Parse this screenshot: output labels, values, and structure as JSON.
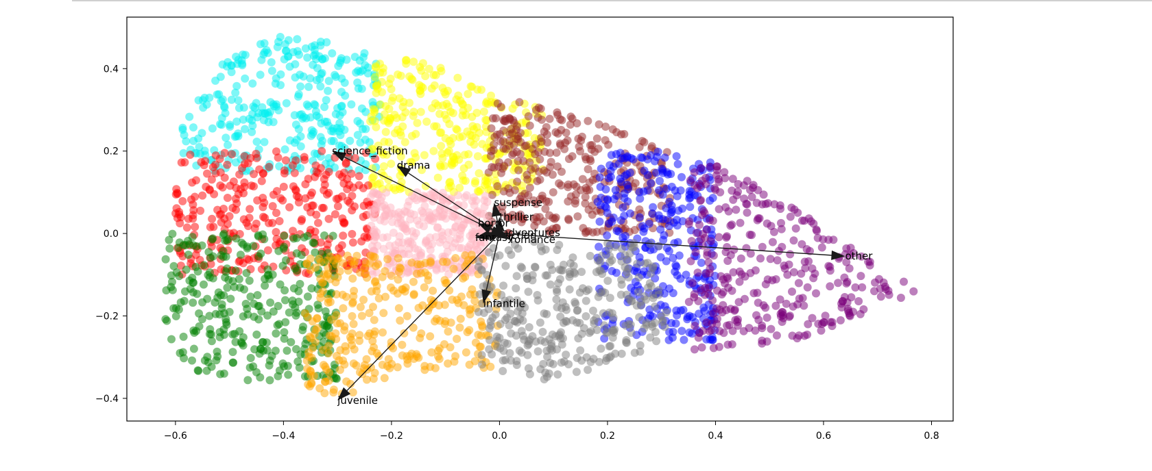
{
  "chart_data": {
    "type": "scatter",
    "title": "",
    "xlabel": "",
    "ylabel": "",
    "xlim": [
      -0.69,
      0.84
    ],
    "ylim": [
      -0.455,
      0.525
    ],
    "xticks": [
      -0.6,
      -0.4,
      -0.2,
      0.0,
      0.2,
      0.4,
      0.6,
      0.8
    ],
    "xtick_labels": [
      "−0.6",
      "−0.4",
      "−0.2",
      "0.0",
      "0.2",
      "0.4",
      "0.6",
      "0.8"
    ],
    "yticks": [
      -0.4,
      -0.2,
      0.0,
      0.2,
      0.4
    ],
    "ytick_labels": [
      "−0.4",
      "−0.2",
      "0.0",
      "0.2",
      "0.4"
    ],
    "grid": false,
    "clusters": [
      {
        "color": "#00f0f0",
        "x_range": [
          -0.59,
          -0.22
        ],
        "y_range": [
          0.15,
          0.48
        ]
      },
      {
        "color": "#ffff00",
        "x_range": [
          -0.24,
          0.08
        ],
        "y_range": [
          0.1,
          0.43
        ]
      },
      {
        "color": "#962828",
        "x_range": [
          -0.02,
          0.32
        ],
        "y_range": [
          0.0,
          0.32
        ]
      },
      {
        "color": "#0000ff",
        "x_range": [
          0.18,
          0.4
        ],
        "y_range": [
          -0.26,
          0.2
        ]
      },
      {
        "color": "#7a007a",
        "x_range": [
          0.35,
          0.78
        ],
        "y_range": [
          -0.3,
          0.19
        ]
      },
      {
        "color": "#ff0000",
        "x_range": [
          -0.6,
          -0.23
        ],
        "y_range": [
          -0.1,
          0.2
        ]
      },
      {
        "color": "#ffb6c1",
        "x_range": [
          -0.24,
          -0.02
        ],
        "y_range": [
          -0.1,
          0.1
        ]
      },
      {
        "color": "#008000",
        "x_range": [
          -0.62,
          -0.3
        ],
        "y_range": [
          -0.37,
          0.0
        ]
      },
      {
        "color": "#ffa500",
        "x_range": [
          -0.36,
          0.0
        ],
        "y_range": [
          -0.41,
          -0.05
        ]
      },
      {
        "color": "#808080",
        "x_range": [
          -0.04,
          0.31
        ],
        "y_range": [
          -0.36,
          -0.02
        ]
      }
    ],
    "arrows": [
      {
        "label": "science_fiction",
        "x": -0.31,
        "y": 0.2
      },
      {
        "label": "drama",
        "x": -0.19,
        "y": 0.165
      },
      {
        "label": "suspense",
        "x": -0.01,
        "y": 0.075
      },
      {
        "label": "thriller",
        "x": 0.0,
        "y": 0.04
      },
      {
        "label": "horror",
        "x": -0.04,
        "y": 0.025
      },
      {
        "label": "adventures",
        "x": 0.005,
        "y": 0.002
      },
      {
        "label": "fantasy",
        "x": -0.045,
        "y": -0.01
      },
      {
        "label": "action",
        "x": 0.01,
        "y": -0.005
      },
      {
        "label": "romance",
        "x": 0.02,
        "y": -0.015
      },
      {
        "label": "other",
        "x": 0.64,
        "y": -0.055
      },
      {
        "label": "infantile",
        "x": -0.03,
        "y": -0.17
      },
      {
        "label": "juvenile",
        "x": -0.3,
        "y": -0.405
      }
    ]
  }
}
